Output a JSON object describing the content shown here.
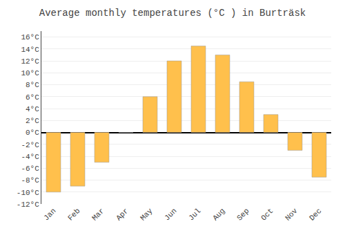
{
  "chart_data": {
    "type": "bar",
    "title": "Average monthly temperatures (°C ) in Burträsk",
    "categories": [
      "Jan",
      "Feb",
      "Mar",
      "Apr",
      "May",
      "Jun",
      "Jul",
      "Aug",
      "Sep",
      "Oct",
      "Nov",
      "Dec"
    ],
    "values": [
      -10,
      -9,
      -5,
      0,
      6,
      12,
      14.5,
      13,
      8.5,
      3,
      -3,
      -7.5
    ],
    "color": "#FFC04C",
    "ylim": [
      -12,
      17
    ],
    "yticks": [
      {
        "value": -12,
        "label": "-12°C"
      },
      {
        "value": -10,
        "label": "-10°C"
      },
      {
        "value": -8,
        "label": "-8°C"
      },
      {
        "value": -6,
        "label": "-6°C"
      },
      {
        "value": -4,
        "label": "-4°C"
      },
      {
        "value": -2,
        "label": "-2°C"
      },
      {
        "value": 0,
        "label": "0°C"
      },
      {
        "value": 2,
        "label": "2°C"
      },
      {
        "value": 4,
        "label": "4°C"
      },
      {
        "value": 6,
        "label": "6°C"
      },
      {
        "value": 8,
        "label": "8°C"
      },
      {
        "value": 10,
        "label": "10°C"
      },
      {
        "value": 12,
        "label": "12°C"
      },
      {
        "value": 14,
        "label": "14°C"
      },
      {
        "value": 16,
        "label": "16°C"
      }
    ],
    "grid": true
  }
}
